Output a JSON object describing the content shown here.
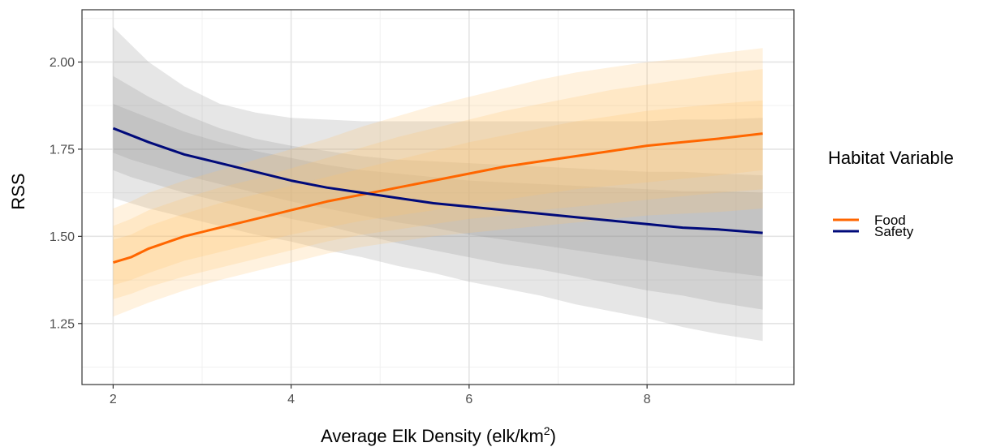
{
  "chart_data": {
    "type": "line",
    "xlabel_prefix": "Average Elk Density (elk/km",
    "xlabel_sup": "2",
    "xlabel_suffix": ")",
    "ylabel": "RSS",
    "xlim": [
      1.65,
      9.65
    ],
    "ylim": [
      1.075,
      2.15
    ],
    "x_ticks": [
      2,
      4,
      6,
      8
    ],
    "x_tick_labels": [
      "2",
      "4",
      "6",
      "8"
    ],
    "y_ticks": [
      1.25,
      1.5,
      1.75,
      2.0
    ],
    "y_tick_labels": [
      "1.25",
      "1.50",
      "1.75",
      "2.00"
    ],
    "grid": true,
    "legend_position": "right",
    "legend_title": "Habitat Variable",
    "series": [
      {
        "name": "Food",
        "color": "#ff6600",
        "band_color": "#ffc36e",
        "x": [
          2.0,
          2.2,
          2.4,
          2.8,
          3.2,
          3.6,
          4.0,
          4.4,
          4.8,
          5.2,
          5.6,
          6.0,
          6.4,
          6.8,
          7.2,
          7.6,
          8.0,
          8.4,
          8.8,
          9.3
        ],
        "y": [
          1.425,
          1.44,
          1.465,
          1.5,
          1.525,
          1.55,
          1.575,
          1.6,
          1.62,
          1.64,
          1.66,
          1.68,
          1.7,
          1.715,
          1.73,
          1.745,
          1.76,
          1.77,
          1.78,
          1.795
        ],
        "bands": [
          {
            "lower": [
              1.36,
              1.375,
              1.395,
              1.43,
              1.455,
              1.48,
              1.505,
              1.525,
              1.545,
              1.56,
              1.575,
              1.59,
              1.605,
              1.62,
              1.635,
              1.645,
              1.655,
              1.665,
              1.675,
              1.69
            ],
            "upper": [
              1.49,
              1.505,
              1.53,
              1.565,
              1.595,
              1.62,
              1.645,
              1.67,
              1.695,
              1.72,
              1.745,
              1.77,
              1.79,
              1.81,
              1.83,
              1.845,
              1.86,
              1.87,
              1.88,
              1.89
            ]
          },
          {
            "lower": [
              1.32,
              1.335,
              1.355,
              1.385,
              1.41,
              1.435,
              1.46,
              1.485,
              1.505,
              1.52,
              1.535,
              1.55,
              1.56,
              1.575,
              1.585,
              1.595,
              1.605,
              1.615,
              1.625,
              1.635
            ],
            "upper": [
              1.53,
              1.55,
              1.575,
              1.61,
              1.64,
              1.665,
              1.695,
              1.725,
              1.755,
              1.785,
              1.81,
              1.835,
              1.86,
              1.88,
              1.9,
              1.92,
              1.935,
              1.95,
              1.965,
              1.98
            ]
          },
          {
            "lower": [
              1.27,
              1.29,
              1.31,
              1.345,
              1.375,
              1.4,
              1.425,
              1.45,
              1.47,
              1.485,
              1.5,
              1.51,
              1.52,
              1.53,
              1.54,
              1.55,
              1.56,
              1.565,
              1.57,
              1.58
            ],
            "upper": [
              1.58,
              1.6,
              1.625,
              1.66,
              1.69,
              1.72,
              1.75,
              1.78,
              1.815,
              1.845,
              1.875,
              1.9,
              1.925,
              1.95,
              1.97,
              1.985,
              2.0,
              2.01,
              2.025,
              2.04
            ]
          }
        ]
      },
      {
        "name": "Safety",
        "color": "#000a7a",
        "band_color": "#8c8c8c",
        "x": [
          2.0,
          2.2,
          2.4,
          2.8,
          3.2,
          3.6,
          4.0,
          4.4,
          4.8,
          5.2,
          5.6,
          6.0,
          6.4,
          6.8,
          7.2,
          7.6,
          8.0,
          8.4,
          8.8,
          9.3
        ],
        "y": [
          1.81,
          1.79,
          1.77,
          1.735,
          1.71,
          1.685,
          1.66,
          1.64,
          1.625,
          1.61,
          1.595,
          1.585,
          1.575,
          1.565,
          1.555,
          1.545,
          1.535,
          1.525,
          1.52,
          1.51
        ],
        "bands": [
          {
            "lower": [
              1.74,
              1.72,
              1.705,
              1.675,
              1.65,
              1.625,
              1.6,
              1.58,
              1.56,
              1.54,
              1.525,
              1.505,
              1.49,
              1.475,
              1.46,
              1.445,
              1.43,
              1.415,
              1.4,
              1.385
            ],
            "upper": [
              1.88,
              1.86,
              1.84,
              1.8,
              1.77,
              1.745,
              1.725,
              1.705,
              1.69,
              1.68,
              1.67,
              1.66,
              1.655,
              1.65,
              1.645,
              1.64,
              1.635,
              1.63,
              1.63,
              1.625
            ]
          },
          {
            "lower": [
              1.69,
              1.67,
              1.655,
              1.625,
              1.6,
              1.575,
              1.55,
              1.53,
              1.505,
              1.48,
              1.46,
              1.44,
              1.42,
              1.405,
              1.385,
              1.365,
              1.345,
              1.33,
              1.31,
              1.29
            ],
            "upper": [
              1.96,
              1.93,
              1.9,
              1.85,
              1.81,
              1.78,
              1.76,
              1.745,
              1.73,
              1.72,
              1.715,
              1.71,
              1.705,
              1.7,
              1.695,
              1.69,
              1.685,
              1.685,
              1.68,
              1.675
            ]
          },
          {
            "lower": [
              1.61,
              1.595,
              1.58,
              1.555,
              1.53,
              1.505,
              1.485,
              1.46,
              1.44,
              1.415,
              1.395,
              1.37,
              1.35,
              1.33,
              1.305,
              1.285,
              1.265,
              1.24,
              1.22,
              1.2
            ],
            "upper": [
              2.1,
              2.05,
              2.0,
              1.93,
              1.88,
              1.855,
              1.84,
              1.835,
              1.83,
              1.83,
              1.83,
              1.83,
              1.83,
              1.83,
              1.83,
              1.83,
              1.83,
              1.835,
              1.835,
              1.84
            ]
          }
        ]
      }
    ]
  }
}
